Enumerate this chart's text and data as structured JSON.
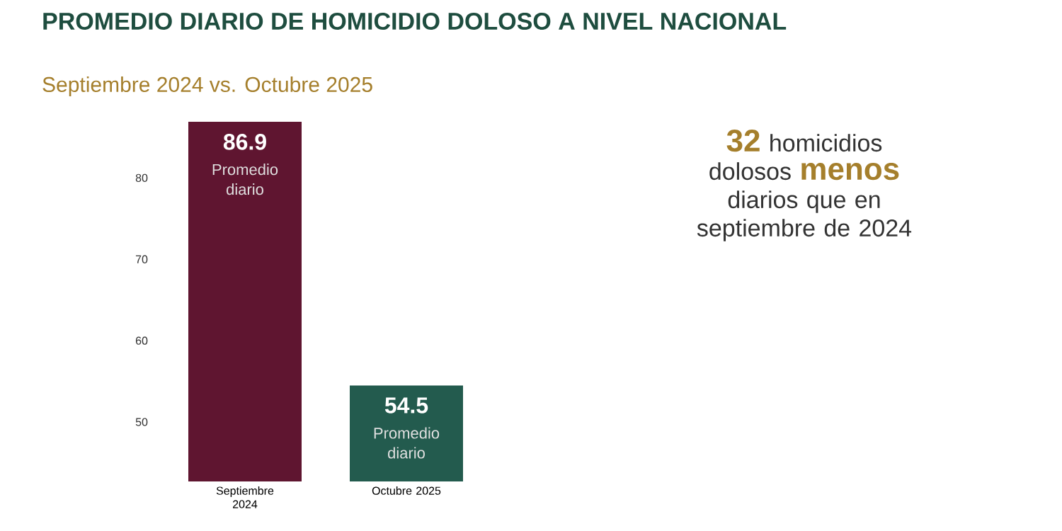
{
  "chart_data": {
    "type": "bar",
    "title": "PROMEDIO DIARIO DE HOMICIDIO DOLOSO A NIVEL NACIONAL",
    "subtitle": "Septiembre 2024 vs. Octubre 2025",
    "categories": [
      "Septiembre 2024",
      "Octubre 2025"
    ],
    "values": [
      86.9,
      54.5
    ],
    "colors": [
      "#5f1530",
      "#235b4e"
    ],
    "ylim": [
      42.7,
      86.9
    ],
    "yticks": [
      50,
      60,
      70,
      80
    ],
    "data_labels": true,
    "annotations": [
      {
        "text": "Promedio diario",
        "x": "Septiembre 2024",
        "y": 86.9
      },
      {
        "text": "Promedio diario",
        "x": "Octubre 2025",
        "y": 54.5
      },
      "**32** homicidios dolosos **menos** diarios que en septiembre de 2024"
    ]
  }
}
